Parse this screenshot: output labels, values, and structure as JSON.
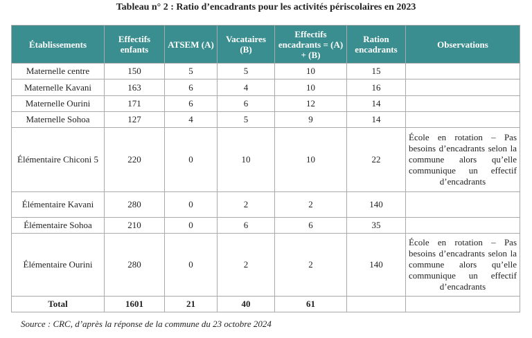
{
  "header": {
    "title": "Tableau n° 2 : Ratio d’encadrants pour les activités périscolaires en 2023"
  },
  "table": {
    "columns": [
      "Établissements",
      "Effectifs enfants",
      "ATSEM (A)",
      "Vacataires (B)",
      "Effectifs encadrants = (A) + (B)",
      "Ration encadrants",
      "Observations"
    ],
    "rows": [
      [
        "Maternelle centre",
        150,
        5,
        5,
        10,
        15,
        null
      ],
      [
        "Maternelle Kavani",
        163,
        6,
        4,
        10,
        16,
        null
      ],
      [
        "Maternelle Ourini",
        171,
        6,
        6,
        12,
        14,
        null
      ],
      [
        "Maternelle Sohoa",
        127,
        4,
        5,
        9,
        14,
        null
      ],
      [
        "Élémentaire Chiconi 5",
        220,
        0,
        10,
        10,
        22,
        "École en rotation – Pas besoins d’encadrants selon la commune alors qu’elle communique un effectif d’encadrants"
      ],
      [
        "Élémentaire Kavani",
        280,
        0,
        2,
        2,
        140,
        null
      ],
      [
        "Élémentaire Sohoa",
        210,
        0,
        6,
        6,
        35,
        null
      ],
      [
        "Élémentaire Ourini",
        280,
        0,
        2,
        2,
        140,
        "École en rotation – Pas besoins d’encadrants selon la commune alors qu’elle communique un effectif d’encadrants"
      ],
      [
        "Total",
        1601,
        21,
        40,
        61,
        null,
        null
      ]
    ]
  },
  "footer": {
    "source": "Source : CRC, d’après la réponse de la commune du 23 octobre 2024"
  }
}
